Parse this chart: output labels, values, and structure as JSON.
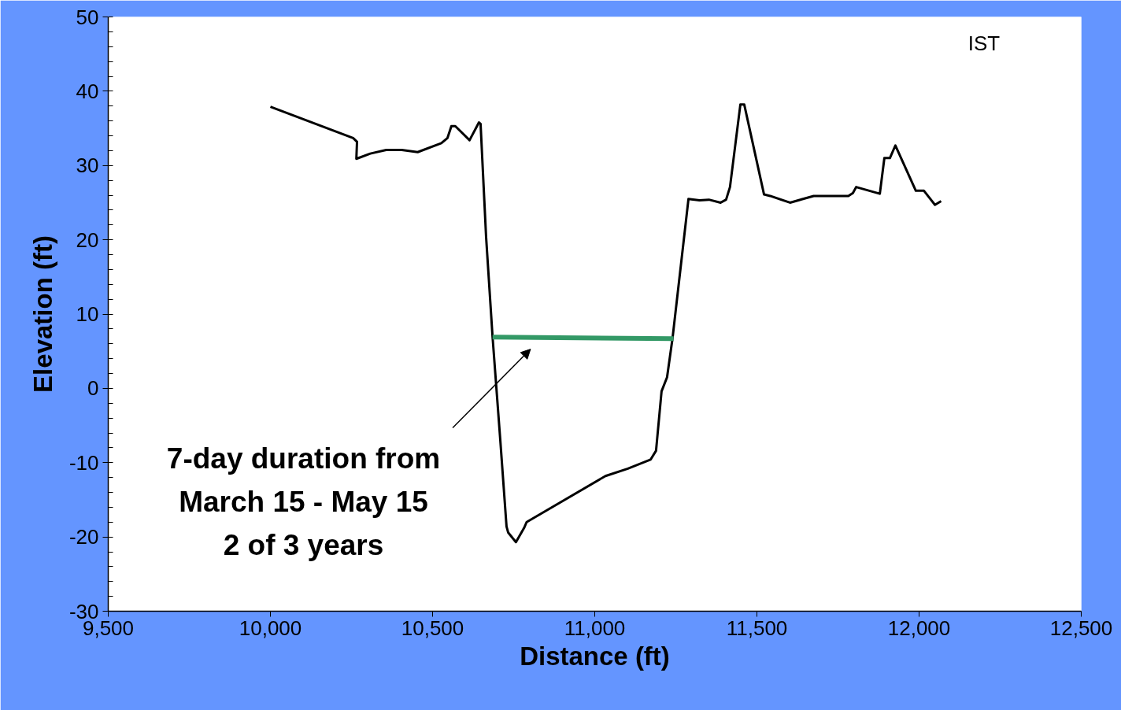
{
  "chart_data": {
    "type": "line",
    "xlabel": "Distance (ft)",
    "ylabel": "Elevation (ft)",
    "xlim": [
      9500,
      12500
    ],
    "xticks": [
      {
        "value": 9500,
        "label": "9,500"
      },
      {
        "value": 10000,
        "label": "10,000"
      },
      {
        "value": 10500,
        "label": "10,500"
      },
      {
        "value": 11000,
        "label": "11,000"
      },
      {
        "value": 11500,
        "label": "11,500"
      },
      {
        "value": 12000,
        "label": "12,000"
      },
      {
        "value": 12500,
        "label": "12,500"
      }
    ],
    "ylim": [
      -30,
      50
    ],
    "yticks": [
      -30,
      -20,
      -10,
      0,
      10,
      20,
      30,
      40,
      50
    ],
    "grid": false,
    "marker": "none",
    "line_style": "solid",
    "series": [
      {
        "color": "#000000",
        "x": [
          10000,
          10255,
          10267,
          10265,
          10308,
          10357,
          10405,
          10454,
          10527,
          10546,
          10558,
          10570,
          10614,
          10643,
          10648,
          10665,
          10685,
          10709,
          10728,
          10733,
          10757,
          10782,
          10790,
          11033,
          11102,
          11172,
          11189,
          11206,
          11223,
          11240,
          11289,
          11323,
          11352,
          11388,
          11405,
          11417,
          11449,
          11461,
          11522,
          11541,
          11602,
          11675,
          11782,
          11796,
          11806,
          11879,
          11893,
          11910,
          11927,
          11990,
          12015,
          12049,
          12068
        ],
        "values": [
          37.9,
          33.7,
          33.2,
          30.9,
          31.6,
          32.1,
          32.1,
          31.8,
          33.0,
          33.7,
          35.3,
          35.3,
          33.4,
          35.8,
          35.6,
          20.4,
          6.9,
          -7.1,
          -18.6,
          -19.4,
          -20.7,
          -18.8,
          -18.0,
          -11.8,
          -10.8,
          -9.6,
          -8.4,
          -0.4,
          1.5,
          6.8,
          25.5,
          25.3,
          25.4,
          25.0,
          25.4,
          27.1,
          38.2,
          38.2,
          26.1,
          25.9,
          25.0,
          25.9,
          25.9,
          26.3,
          27.1,
          26.2,
          31.0,
          31.0,
          32.7,
          26.6,
          26.6,
          24.7,
          25.2
        ]
      },
      {
        "color": "#339966",
        "x": [
          10685,
          11243
        ],
        "values": [
          6.9,
          6.7
        ]
      }
    ],
    "annotations": [
      "IST",
      "7-day duration from\nMarch 15 - May 15\n2 of 3 years"
    ]
  }
}
